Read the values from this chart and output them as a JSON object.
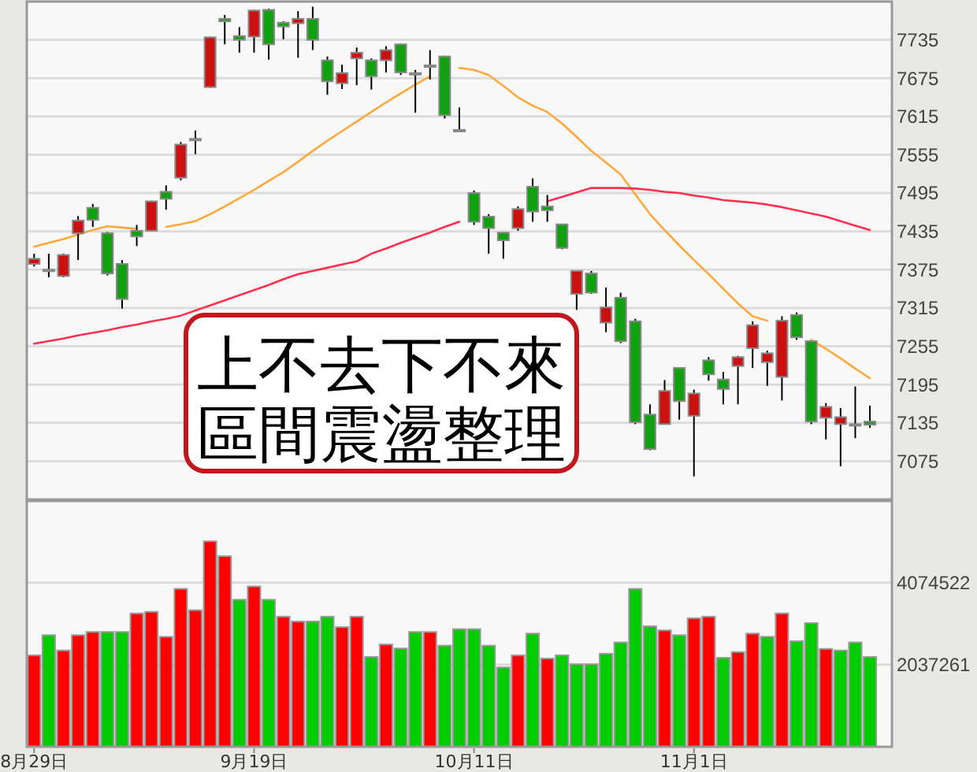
{
  "chart_data": [
    {
      "type": "candlestick",
      "categories": [
        null,
        null,
        null,
        null,
        null,
        null,
        null,
        null,
        null,
        null,
        null,
        null,
        null,
        null,
        null,
        null,
        null,
        null,
        null,
        null,
        null,
        null,
        null,
        null,
        null,
        null,
        null,
        null,
        null,
        null,
        null,
        null,
        null,
        null,
        null,
        null,
        null,
        null,
        null,
        null,
        null,
        null,
        null,
        null,
        null,
        null,
        null,
        null,
        null,
        null,
        null,
        null,
        null,
        null,
        null,
        null,
        null,
        null
      ],
      "ohlc": [
        [
          7384,
          7400,
          7380,
          7392
        ],
        [
          7375,
          7400,
          7363,
          7373
        ],
        [
          7365,
          7400,
          7363,
          7398
        ],
        [
          7432,
          7459,
          7390,
          7452
        ],
        [
          7472,
          7478,
          7442,
          7453
        ],
        [
          7432,
          7434,
          7366,
          7369
        ],
        [
          7384,
          7390,
          7314,
          7329
        ],
        [
          7436,
          7445,
          7412,
          7427
        ],
        [
          7436,
          7483,
          7435,
          7482
        ],
        [
          7497,
          7507,
          7469,
          7486
        ],
        [
          7519,
          7575,
          7515,
          7571
        ],
        [
          7578,
          7593,
          7556,
          7580
        ],
        [
          7661,
          7740,
          7660,
          7739
        ],
        [
          7768,
          7774,
          7728,
          7764
        ],
        [
          7741,
          7755,
          7715,
          7735
        ],
        [
          7740,
          7782,
          7715,
          7781
        ],
        [
          7782,
          7784,
          7704,
          7728
        ],
        [
          7762,
          7764,
          7736,
          7756
        ],
        [
          7761,
          7780,
          7707,
          7768
        ],
        [
          7768,
          7787,
          7719,
          7735
        ],
        [
          7703,
          7709,
          7649,
          7670
        ],
        [
          7667,
          7696,
          7658,
          7683
        ],
        [
          7706,
          7723,
          7664,
          7715
        ],
        [
          7703,
          7706,
          7657,
          7678
        ],
        [
          7703,
          7725,
          7684,
          7719
        ],
        [
          7728,
          7729,
          7680,
          7684
        ],
        [
          7683,
          7688,
          7621,
          7681
        ],
        [
          7693,
          7719,
          7673,
          7695
        ],
        [
          7709,
          7710,
          7612,
          7617
        ],
        [
          7594,
          7629,
          7593,
          7593
        ],
        [
          7495,
          7499,
          7445,
          7450
        ],
        [
          7458,
          7462,
          7400,
          7440
        ],
        [
          7433,
          7433,
          7392,
          7421
        ],
        [
          7440,
          7474,
          7436,
          7470
        ],
        [
          7505,
          7518,
          7450,
          7466
        ],
        [
          7474,
          7492,
          7450,
          7468
        ],
        [
          7446,
          7447,
          7407,
          7409
        ],
        [
          7337,
          7374,
          7312,
          7373
        ],
        [
          7369,
          7373,
          7337,
          7339
        ],
        [
          7292,
          7347,
          7277,
          7316
        ],
        [
          7331,
          7339,
          7260,
          7263
        ],
        [
          7294,
          7298,
          7133,
          7136
        ],
        [
          7148,
          7164,
          7092,
          7094
        ],
        [
          7133,
          7202,
          7133,
          7185
        ],
        [
          7221,
          7221,
          7140,
          7169
        ],
        [
          7146,
          7187,
          7051,
          7181
        ],
        [
          7233,
          7238,
          7201,
          7211
        ],
        [
          7203,
          7215,
          7164,
          7188
        ],
        [
          7224,
          7240,
          7164,
          7238
        ],
        [
          7252,
          7294,
          7221,
          7288
        ],
        [
          7230,
          7248,
          7193,
          7244
        ],
        [
          7207,
          7302,
          7170,
          7295
        ],
        [
          7304,
          7308,
          7265,
          7269
        ],
        [
          7263,
          7264,
          7133,
          7137
        ],
        [
          7143,
          7166,
          7109,
          7160
        ],
        [
          7133,
          7158,
          7067,
          7144
        ],
        [
          7131,
          7192,
          7111,
          7133
        ],
        [
          7137,
          7162,
          7127,
          7132
        ]
      ],
      "series": [
        {
          "type": "line",
          "color": "#ffa83c",
          "values": [
            7411,
            7417,
            7423,
            7430,
            7437,
            7443,
            7441,
            7439,
            null,
            7442,
            7446,
            7451,
            7462,
            7474,
            7487,
            7500,
            7514,
            7528,
            7544,
            7561,
            7577,
            7592,
            7607,
            7622,
            7637,
            7651,
            7665,
            7678,
            null,
            7691,
            7688,
            7680,
            7663,
            7645,
            7632,
            7622,
            7604,
            7583,
            7561,
            7543,
            7524,
            7493,
            7462,
            7437,
            7413,
            7390,
            7368,
            7345,
            7322,
            7302,
            7295,
            null,
            null,
            7265,
            7251,
            7236,
            7220,
            7205
          ]
        },
        {
          "type": "line",
          "color": "#ff3050",
          "values": [
            7259,
            7263,
            7267,
            7272,
            7276,
            7280,
            7285,
            7289,
            7294,
            7298,
            7303,
            7311,
            7319,
            7327,
            7335,
            7343,
            7351,
            7360,
            7368,
            7373,
            7378,
            7383,
            7388,
            7400,
            7408,
            7417,
            7425,
            7433,
            7442,
            7450,
            null,
            null,
            null,
            null,
            null,
            7482,
            7489,
            7496,
            7503,
            7503,
            7503,
            7502,
            7500,
            7497,
            7495,
            7491,
            7488,
            7484,
            7482,
            7480,
            7477,
            7473,
            7468,
            7463,
            7458,
            7451,
            7444,
            7437
          ]
        }
      ],
      "ylim": [
        7015,
        7795
      ],
      "yticks": [
        7075,
        7135,
        7195,
        7255,
        7315,
        7375,
        7435,
        7495,
        7555,
        7615,
        7675,
        7735
      ],
      "grid": "y",
      "tick_labels": "y",
      "annotations": [
        "上不去下不來",
        "區間震盪整理"
      ]
    },
    {
      "type": "bar",
      "categories": [
        "8月29日",
        null,
        null,
        null,
        null,
        null,
        null,
        null,
        null,
        null,
        null,
        null,
        null,
        null,
        null,
        "9月19日",
        null,
        null,
        null,
        null,
        null,
        null,
        null,
        null,
        null,
        null,
        null,
        null,
        null,
        null,
        "10月11日",
        null,
        null,
        null,
        null,
        null,
        null,
        null,
        null,
        null,
        null,
        null,
        null,
        null,
        null,
        "11月1日",
        null,
        null,
        null,
        null,
        null,
        null,
        null,
        null,
        null,
        null,
        null,
        null
      ],
      "values": [
        2270000,
        2770000,
        2390000,
        2770000,
        2850000,
        2850000,
        2850000,
        3310000,
        3350000,
        2730000,
        3920000,
        3390000,
        5100000,
        4730000,
        3650000,
        3980000,
        3650000,
        3230000,
        3110000,
        3110000,
        3230000,
        2970000,
        3230000,
        2230000,
        2540000,
        2440000,
        2850000,
        2850000,
        2510000,
        2920000,
        2920000,
        2510000,
        1970000,
        2270000,
        2810000,
        2190000,
        2270000,
        2050000,
        2050000,
        2310000,
        2590000,
        3920000,
        2990000,
        2890000,
        2770000,
        3190000,
        3230000,
        2210000,
        2350000,
        2810000,
        2730000,
        3310000,
        2620000,
        3070000,
        2430000,
        2390000,
        2590000,
        2230000
      ],
      "colors": [
        "#ff0000",
        "#00cc00",
        "#ff0000",
        "#ff0000",
        "#ff0000",
        "#00cc00",
        "#00cc00",
        "#ff0000",
        "#ff0000",
        "#ff0000",
        "#ff0000",
        "#ff0000",
        "#ff0000",
        "#ff0000",
        "#00cc00",
        "#ff0000",
        "#00cc00",
        "#ff0000",
        "#ff0000",
        "#00cc00",
        "#00cc00",
        "#ff0000",
        "#ff0000",
        "#00cc00",
        "#ff0000",
        "#00cc00",
        "#00cc00",
        "#ff0000",
        "#00cc00",
        "#00cc00",
        "#00cc00",
        "#00cc00",
        "#00cc00",
        "#ff0000",
        "#00cc00",
        "#ff0000",
        "#00cc00",
        "#00cc00",
        "#00cc00",
        "#00cc00",
        "#00cc00",
        "#00cc00",
        "#00cc00",
        "#ff0000",
        "#00cc00",
        "#ff0000",
        "#ff0000",
        "#00cc00",
        "#ff0000",
        "#ff0000",
        "#00cc00",
        "#ff0000",
        "#00cc00",
        "#00cc00",
        "#ff0000",
        "#00cc00",
        "#00cc00",
        "#00cc00"
      ],
      "ylim": [
        0,
        6100000
      ],
      "yticks": [
        2037261,
        4074522
      ],
      "grid": "y"
    }
  ]
}
